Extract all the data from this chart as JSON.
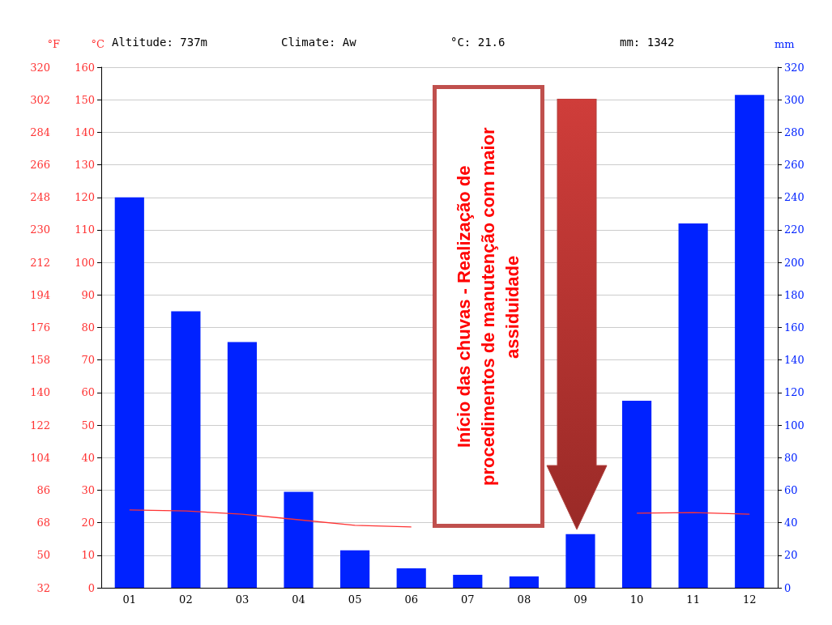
{
  "chart_data": {
    "type": "bar",
    "categories": [
      "01",
      "02",
      "03",
      "04",
      "05",
      "06",
      "07",
      "08",
      "09",
      "10",
      "11",
      "12"
    ],
    "series": [
      {
        "axis": "y2",
        "color": "#0022ff",
        "values": [
          240,
          170,
          151,
          59,
          23,
          12,
          8,
          7,
          33,
          115,
          224,
          303
        ]
      },
      {
        "type": "line",
        "axis": "y",
        "color": "#ff3333",
        "marker": "none",
        "values": [
          23.9,
          23.6,
          22.6,
          20.9,
          19.2,
          18.7,
          null,
          null,
          null,
          22.9,
          23.1,
          22.6
        ]
      }
    ],
    "ylabel": "°C",
    "y2label": "mm",
    "y3label": "°F",
    "ylim": [
      0,
      160
    ],
    "yticks": [
      0,
      10,
      20,
      30,
      40,
      50,
      60,
      70,
      80,
      90,
      100,
      110,
      120,
      130,
      140,
      150,
      160
    ],
    "y2lim": [
      0,
      320
    ],
    "y2ticks": [
      0,
      20,
      40,
      60,
      80,
      100,
      120,
      140,
      160,
      180,
      200,
      220,
      240,
      260,
      280,
      300,
      320
    ],
    "y3lim": [
      32,
      320
    ],
    "y3ticks": [
      32,
      50,
      68,
      86,
      104,
      122,
      140,
      158,
      176,
      194,
      212,
      230,
      248,
      266,
      284,
      302,
      320
    ],
    "grid": "y",
    "annotations": [
      "Altitude: 737m",
      "Climate: Aw",
      "°C: 21.6",
      "mm: 1342",
      "Início das chuvas - Realização de procedimentos de manutenção com maior assiduidade"
    ]
  }
}
